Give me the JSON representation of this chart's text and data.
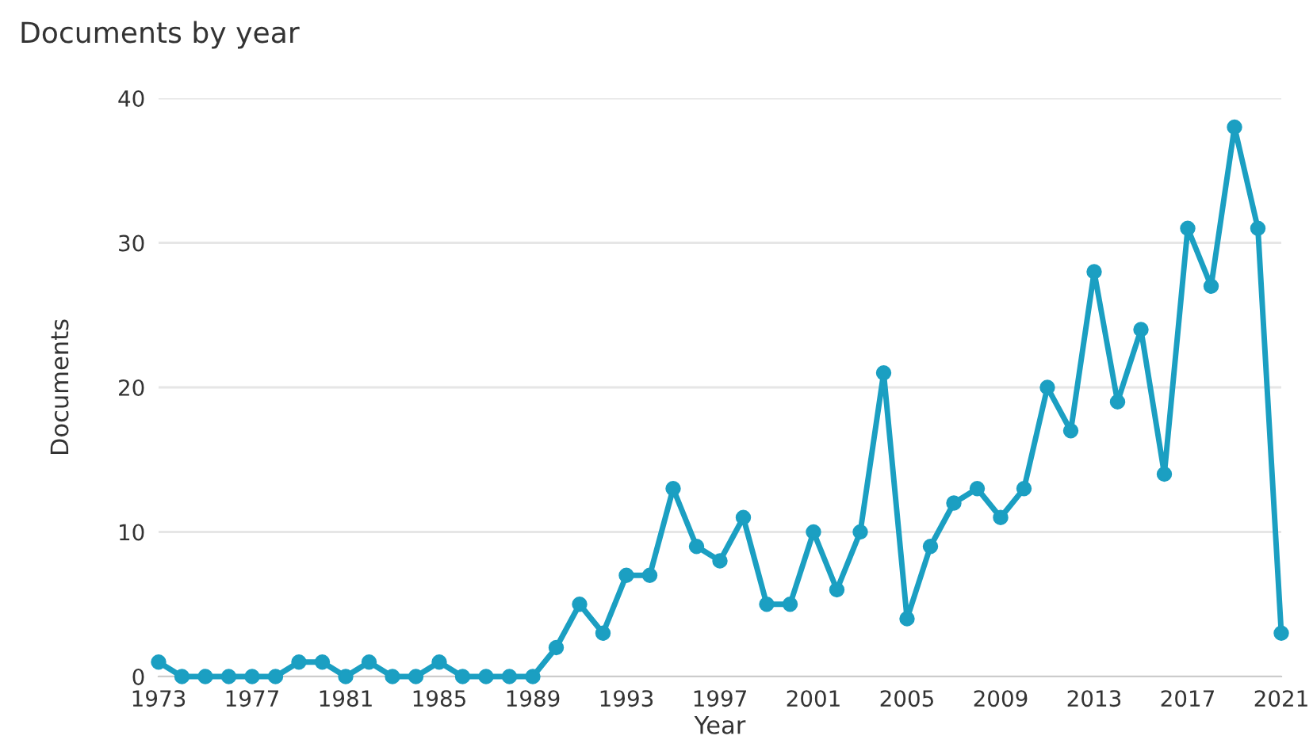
{
  "chart_data": {
    "type": "line",
    "title": "Documents by year",
    "xlabel": "Year",
    "ylabel": "Documents",
    "x": [
      1973,
      1974,
      1975,
      1976,
      1977,
      1978,
      1979,
      1980,
      1981,
      1982,
      1983,
      1984,
      1985,
      1986,
      1987,
      1988,
      1989,
      1990,
      1991,
      1992,
      1993,
      1994,
      1995,
      1996,
      1997,
      1998,
      1999,
      2000,
      2001,
      2002,
      2003,
      2004,
      2005,
      2006,
      2007,
      2008,
      2009,
      2010,
      2011,
      2012,
      2013,
      2014,
      2015,
      2016,
      2017,
      2018,
      2019,
      2020,
      2021
    ],
    "series": [
      {
        "color": "#1b9fc2",
        "values": [
          1,
          0,
          0,
          0,
          0,
          0,
          1,
          1,
          0,
          1,
          0,
          0,
          1,
          0,
          0,
          0,
          0,
          2,
          5,
          3,
          7,
          7,
          13,
          9,
          8,
          11,
          5,
          5,
          10,
          6,
          10,
          21,
          4,
          9,
          12,
          13,
          11,
          13,
          20,
          17,
          28,
          19,
          24,
          14,
          31,
          27,
          38,
          31,
          3
        ]
      }
    ],
    "xlim": [
      1973,
      2021
    ],
    "xticks": [
      1973,
      1977,
      1981,
      1985,
      1989,
      1993,
      1997,
      2001,
      2005,
      2009,
      2013,
      2017,
      2021
    ],
    "ylim": [
      0,
      40
    ],
    "yticks": [
      0,
      10,
      20,
      30,
      40
    ],
    "grid": "y",
    "marker": "circle",
    "line_style": "solid"
  }
}
